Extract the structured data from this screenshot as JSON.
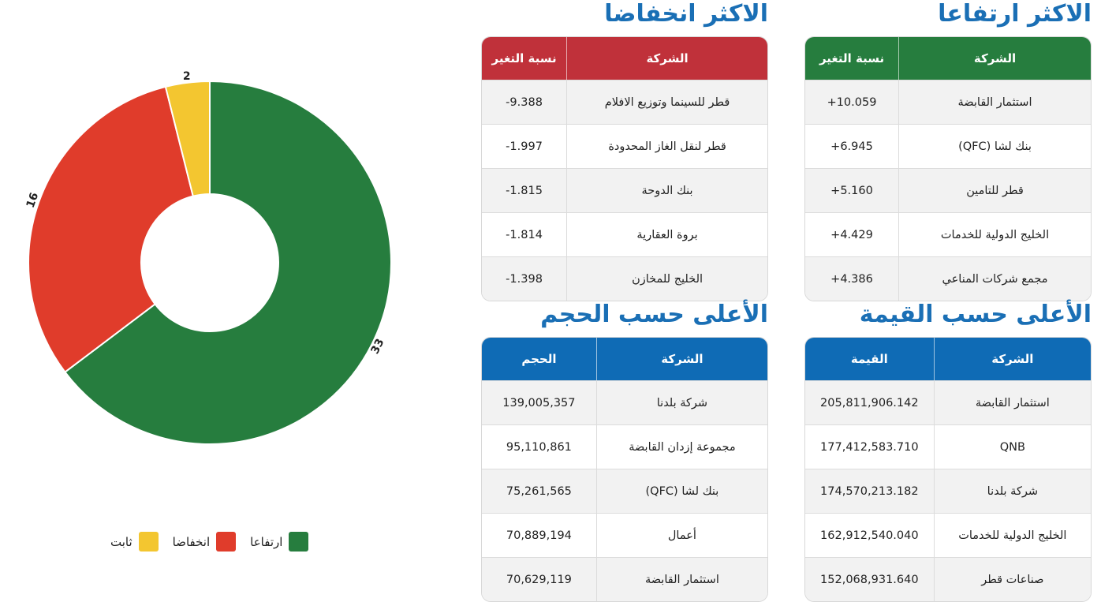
{
  "colors": {
    "rise": "#267d3e",
    "fall": "#e03c2b",
    "stable": "#f3c630",
    "blue": "#0f6bb5",
    "red_head": "#c0313a"
  },
  "chart_data": {
    "type": "pie",
    "donut": true,
    "slices": [
      {
        "label": "ارتفاعا",
        "value": 33,
        "value_label": "33",
        "color": "#267d3e"
      },
      {
        "label": "انخفاضا",
        "value": 16,
        "value_label": "16",
        "color": "#e03c2b"
      },
      {
        "label": "ثابت",
        "value": 2,
        "value_label": "2",
        "color": "#f3c630"
      }
    ],
    "legend_position": "bottom"
  },
  "legend": [
    {
      "label": "ارتفاعا",
      "color": "#267d3e"
    },
    {
      "label": "انخفاضا",
      "color": "#e03c2b"
    },
    {
      "label": "ثابت",
      "color": "#f3c630"
    }
  ],
  "top_gainers": {
    "title": "الاكثر ارتفاعا",
    "headers": [
      "الشركة",
      "نسبة التغير"
    ],
    "rows": [
      [
        "استثمار القابضة",
        "+10.059"
      ],
      [
        "بنك لشا (QFC)",
        "+6.945"
      ],
      [
        "قطر للتامين",
        "+5.160"
      ],
      [
        "الخليج الدولية للخدمات",
        "+4.429"
      ],
      [
        "مجمع شركات المناعي",
        "+4.386"
      ]
    ]
  },
  "top_losers": {
    "title": "الاكثر انخفاضا",
    "headers": [
      "الشركة",
      "نسبة التغير"
    ],
    "rows": [
      [
        "قطر للسينما وتوزيع الافلام",
        "-9.388"
      ],
      [
        "قطر لنقل الغاز المحدودة",
        "-1.997"
      ],
      [
        "بنك الدوحة",
        "-1.815"
      ],
      [
        "بروة العقارية",
        "-1.814"
      ],
      [
        "الخليج للمخازن",
        "-1.398"
      ]
    ]
  },
  "top_value": {
    "title": "الأعلى حسب القيمة",
    "headers": [
      "الشركة",
      "القيمة"
    ],
    "rows": [
      [
        "استثمار القابضة",
        "205,811,906.142"
      ],
      [
        "QNB",
        "177,412,583.710"
      ],
      [
        "شركة بلدنا",
        "174,570,213.182"
      ],
      [
        "الخليج الدولية للخدمات",
        "162,912,540.040"
      ],
      [
        "صناعات قطر",
        "152,068,931.640"
      ]
    ]
  },
  "top_volume": {
    "title": "الأعلى حسب الحجم",
    "headers": [
      "الشركة",
      "الحجم"
    ],
    "rows": [
      [
        "شركة بلدنا",
        "139,005,357"
      ],
      [
        "مجموعة إزدان القابضة",
        "95,110,861"
      ],
      [
        "بنك لشا (QFC)",
        "75,261,565"
      ],
      [
        "أعمال",
        "70,889,194"
      ],
      [
        "استثمار القابضة",
        "70,629,119"
      ]
    ]
  }
}
